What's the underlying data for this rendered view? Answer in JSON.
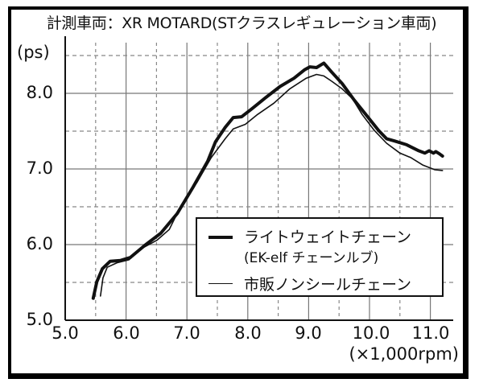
{
  "title": "計測車両：XR MOTARD(STクラスレギュレーション車両)",
  "colors": {
    "line": "#111111",
    "grid": "#777777",
    "frame": "#000000",
    "background": "#ffffff"
  },
  "axes": {
    "y_unit": "(ps)",
    "y_ticks": [
      "8.0",
      "7.0",
      "6.0",
      "5.0"
    ],
    "x_ticks": [
      "5.0",
      "6.0",
      "7.0",
      "8.0",
      "9.0",
      "10.0",
      "11.0"
    ],
    "x_unit": "(×1,000rpm)"
  },
  "legend": {
    "items": [
      {
        "label": "ライトウェイトチェーン",
        "sublabel": "(EK-elf チェーンルブ)",
        "style": "thick"
      },
      {
        "label": "市販ノンシールチェーン",
        "style": "thin"
      }
    ]
  },
  "chart_data": {
    "type": "line",
    "title": "計測車両：XR MOTARD(STクラスレギュレーション車両)",
    "xlabel": "(×1,000rpm)",
    "ylabel": "(ps)",
    "xlim": [
      5.0,
      11.3
    ],
    "ylim": [
      5.0,
      8.6
    ],
    "x_ticks": [
      5.0,
      6.0,
      7.0,
      8.0,
      9.0,
      10.0,
      11.0
    ],
    "y_ticks": [
      5.0,
      6.0,
      7.0,
      8.0
    ],
    "grid": {
      "major": "solid",
      "minor": "dashed",
      "x_minor_step": 0.5,
      "y_minor_step": 0.5
    },
    "legend_position": "lower right",
    "series": [
      {
        "name": "ライトウェイトチェーン (EK-elf チェーンルブ)",
        "style": "thick",
        "x": [
          5.46,
          5.52,
          5.61,
          5.74,
          5.91,
          6.07,
          6.31,
          6.57,
          6.84,
          7.1,
          7.34,
          7.47,
          7.63,
          7.76,
          7.9,
          8.06,
          8.29,
          8.53,
          8.76,
          8.93,
          9.02,
          9.13,
          9.25,
          9.38,
          9.55,
          9.75,
          9.95,
          10.15,
          10.28,
          10.41,
          10.61,
          10.81,
          10.91,
          10.98,
          11.05,
          11.09,
          11.15,
          11.2
        ],
        "values": [
          5.29,
          5.51,
          5.68,
          5.78,
          5.79,
          5.83,
          5.99,
          6.15,
          6.41,
          6.76,
          7.1,
          7.36,
          7.55,
          7.68,
          7.69,
          7.79,
          7.94,
          8.09,
          8.2,
          8.31,
          8.35,
          8.34,
          8.4,
          8.28,
          8.13,
          7.91,
          7.71,
          7.51,
          7.4,
          7.37,
          7.32,
          7.24,
          7.21,
          7.24,
          7.21,
          7.23,
          7.2,
          7.17
        ]
      },
      {
        "name": "市販ノンシールチェーン",
        "style": "thin",
        "x": [
          5.58,
          5.62,
          5.69,
          5.85,
          6.05,
          6.24,
          6.51,
          6.71,
          6.9,
          7.17,
          7.4,
          7.63,
          7.76,
          7.96,
          8.16,
          8.43,
          8.69,
          8.96,
          9.13,
          9.25,
          9.38,
          9.55,
          9.72,
          9.88,
          10.08,
          10.28,
          10.5,
          10.68,
          10.88,
          11.07,
          11.2
        ],
        "values": [
          5.32,
          5.56,
          5.7,
          5.76,
          5.8,
          5.94,
          6.06,
          6.2,
          6.51,
          6.83,
          7.15,
          7.4,
          7.53,
          7.59,
          7.72,
          7.87,
          8.06,
          8.2,
          8.25,
          8.23,
          8.16,
          8.06,
          7.93,
          7.72,
          7.51,
          7.34,
          7.21,
          7.15,
          7.05,
          6.99,
          6.98
        ]
      }
    ]
  }
}
